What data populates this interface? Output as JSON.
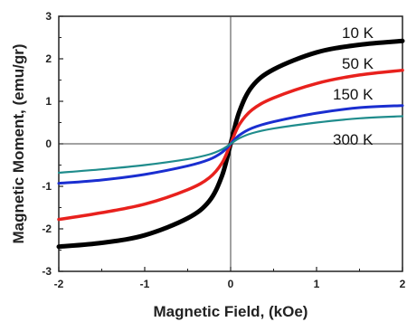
{
  "chart_data": {
    "type": "line",
    "title": "",
    "xlabel": "Magnetic Field, (kOe)",
    "ylabel": "Magnetic Moment, (emu/gr)",
    "xlim": [
      -2,
      2
    ],
    "ylim": [
      -3,
      3
    ],
    "xticks": [
      "-2",
      "-1",
      "0",
      "1",
      "2"
    ],
    "yticks": [
      "-3",
      "-2",
      "-1",
      "0",
      "1",
      "2",
      "3"
    ],
    "grid": false,
    "zero_lines": true,
    "series": [
      {
        "name": "10 K",
        "color": "#000000",
        "x": [
          -2,
          -1.5,
          -1,
          -0.5,
          -0.25,
          -0.1,
          0,
          0.1,
          0.25,
          0.5,
          1,
          1.5,
          2
        ],
        "values": [
          -2.42,
          -2.33,
          -2.15,
          -1.75,
          -1.35,
          -0.75,
          0,
          0.75,
          1.35,
          1.75,
          2.15,
          2.33,
          2.42
        ]
      },
      {
        "name": "50 K",
        "color": "#e8211d",
        "x": [
          -2,
          -1.5,
          -1,
          -0.5,
          -0.25,
          -0.1,
          0,
          0.1,
          0.25,
          0.5,
          1,
          1.5,
          2
        ],
        "values": [
          -1.78,
          -1.62,
          -1.42,
          -1.08,
          -0.8,
          -0.45,
          0,
          0.45,
          0.8,
          1.08,
          1.42,
          1.62,
          1.73
        ]
      },
      {
        "name": "150 K",
        "color": "#1a2ed0",
        "x": [
          -2,
          -1.5,
          -1,
          -0.5,
          -0.25,
          -0.1,
          0,
          0.1,
          0.25,
          0.5,
          1,
          1.5,
          2
        ],
        "values": [
          -0.93,
          -0.85,
          -0.72,
          -0.52,
          -0.37,
          -0.2,
          0,
          0.2,
          0.37,
          0.52,
          0.72,
          0.85,
          0.9
        ]
      },
      {
        "name": "300 K",
        "color": "#1f8c8c",
        "x": [
          -2,
          -1.5,
          -1,
          -0.5,
          -0.25,
          -0.1,
          0,
          0.1,
          0.25,
          0.5,
          1,
          1.5,
          2
        ],
        "values": [
          -0.68,
          -0.6,
          -0.5,
          -0.36,
          -0.25,
          -0.13,
          0,
          0.13,
          0.25,
          0.36,
          0.5,
          0.6,
          0.65
        ]
      }
    ]
  }
}
